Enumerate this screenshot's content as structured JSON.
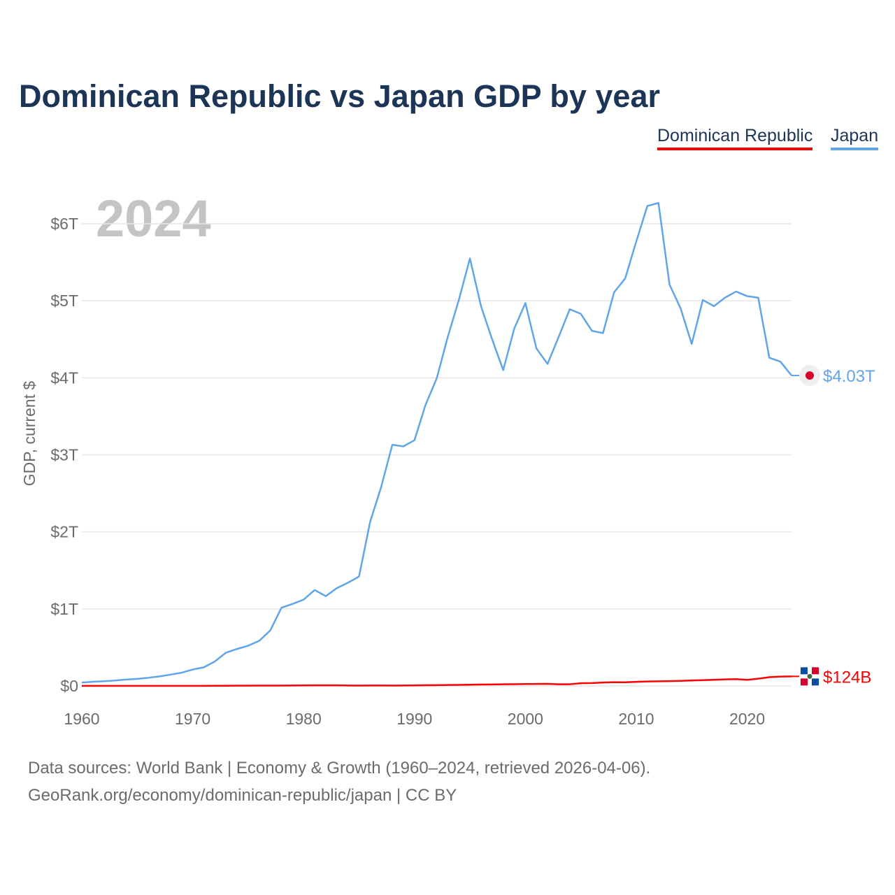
{
  "chart_data": {
    "type": "line",
    "title": "Dominican Republic vs Japan GDP by year",
    "ylabel": "GDP, current $",
    "xlabel": "",
    "year_label": "2024",
    "xlim": [
      1960,
      2024
    ],
    "ylim": [
      0,
      6.6
    ],
    "y_unit": "trillion USD",
    "yticks": [
      {
        "v": 0,
        "label": "$0"
      },
      {
        "v": 1,
        "label": "$1T"
      },
      {
        "v": 2,
        "label": "$2T"
      },
      {
        "v": 3,
        "label": "$3T"
      },
      {
        "v": 4,
        "label": "$4T"
      },
      {
        "v": 5,
        "label": "$5T"
      },
      {
        "v": 6,
        "label": "$6T"
      }
    ],
    "xticks": [
      1960,
      1970,
      1980,
      1990,
      2000,
      2010,
      2020
    ],
    "legend_position": "top-right",
    "grid": true,
    "x": [
      1960,
      1961,
      1962,
      1963,
      1964,
      1965,
      1966,
      1967,
      1968,
      1969,
      1970,
      1971,
      1972,
      1973,
      1974,
      1975,
      1976,
      1977,
      1978,
      1979,
      1980,
      1981,
      1982,
      1983,
      1984,
      1985,
      1986,
      1987,
      1988,
      1989,
      1990,
      1991,
      1992,
      1993,
      1994,
      1995,
      1996,
      1997,
      1998,
      1999,
      2000,
      2001,
      2002,
      2003,
      2004,
      2005,
      2006,
      2007,
      2008,
      2009,
      2010,
      2011,
      2012,
      2013,
      2014,
      2015,
      2016,
      2017,
      2018,
      2019,
      2020,
      2021,
      2022,
      2023,
      2024
    ],
    "series": [
      {
        "name": "Dominican Republic",
        "color": "#ff0000",
        "end_label": "$124B",
        "values": [
          0.0007,
          0.0007,
          0.0008,
          0.0009,
          0.001,
          0.0009,
          0.001,
          0.0011,
          0.0012,
          0.0014,
          0.0015,
          0.0017,
          0.002,
          0.0024,
          0.003,
          0.0036,
          0.004,
          0.0045,
          0.0048,
          0.0055,
          0.0067,
          0.0075,
          0.0079,
          0.0085,
          0.0053,
          0.005,
          0.0055,
          0.0052,
          0.0051,
          0.0061,
          0.0071,
          0.0094,
          0.0107,
          0.012,
          0.0136,
          0.016,
          0.0177,
          0.0198,
          0.0216,
          0.0226,
          0.0246,
          0.0256,
          0.0267,
          0.0215,
          0.0221,
          0.0355,
          0.0377,
          0.0438,
          0.0483,
          0.048,
          0.0532,
          0.0578,
          0.0604,
          0.062,
          0.0654,
          0.0711,
          0.0752,
          0.0798,
          0.0855,
          0.089,
          0.0789,
          0.094,
          0.1134,
          0.121,
          0.124
        ]
      },
      {
        "name": "Japan",
        "color": "#60a5e8",
        "end_label": "$4.03T",
        "values": [
          0.044,
          0.054,
          0.061,
          0.07,
          0.083,
          0.092,
          0.106,
          0.124,
          0.147,
          0.172,
          0.213,
          0.242,
          0.318,
          0.432,
          0.48,
          0.522,
          0.586,
          0.721,
          1.015,
          1.065,
          1.12,
          1.245,
          1.165,
          1.27,
          1.34,
          1.42,
          2.13,
          2.585,
          3.13,
          3.11,
          3.19,
          3.65,
          3.99,
          4.53,
          5.01,
          5.55,
          4.93,
          4.5,
          4.1,
          4.64,
          4.97,
          4.38,
          4.18,
          4.53,
          4.89,
          4.83,
          4.61,
          4.58,
          5.11,
          5.29,
          5.77,
          6.23,
          6.27,
          5.21,
          4.9,
          4.44,
          5.01,
          4.93,
          5.04,
          5.12,
          5.06,
          5.04,
          4.26,
          4.21,
          4.03
        ]
      }
    ]
  },
  "legend": {
    "items": [
      "Dominican Republic",
      "Japan"
    ]
  },
  "footer": {
    "line1": "Data sources: World Bank | Economy & Growth (1960–2024, retrieved 2026-04-06).",
    "line2": "GeoRank.org/economy/dominican-republic/japan | CC BY"
  }
}
